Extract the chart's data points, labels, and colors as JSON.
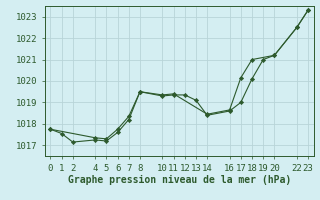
{
  "title": "Graphe pression niveau de la mer (hPa)",
  "background_color": "#d4eef2",
  "grid_color": "#b8d4d8",
  "line_color": "#2d5a2d",
  "marker_color": "#2d5a2d",
  "xlim": [
    -0.5,
    23.5
  ],
  "ylim": [
    1016.5,
    1023.5
  ],
  "yticks": [
    1017,
    1018,
    1019,
    1020,
    1021,
    1022,
    1023
  ],
  "xticks": [
    0,
    1,
    2,
    4,
    5,
    6,
    7,
    8,
    10,
    11,
    12,
    13,
    14,
    16,
    17,
    18,
    19,
    20,
    22,
    23
  ],
  "series1_x": [
    0,
    1,
    2,
    4,
    5,
    6,
    7,
    8,
    10,
    11,
    12,
    13,
    14,
    16,
    17,
    18,
    19,
    20,
    22,
    23
  ],
  "series1_y": [
    1017.75,
    1017.55,
    1017.15,
    1017.25,
    1017.2,
    1017.6,
    1018.2,
    1019.5,
    1019.3,
    1019.35,
    1019.35,
    1019.1,
    1018.4,
    1018.6,
    1019.0,
    1020.1,
    1021.0,
    1021.2,
    1022.5,
    1023.3
  ],
  "series2_x": [
    0,
    4,
    5,
    6,
    7,
    8,
    10,
    11,
    14,
    16,
    17,
    18,
    20,
    22,
    23
  ],
  "series2_y": [
    1017.75,
    1017.35,
    1017.3,
    1017.75,
    1018.35,
    1019.5,
    1019.35,
    1019.4,
    1018.45,
    1018.65,
    1020.15,
    1021.0,
    1021.2,
    1022.5,
    1023.3
  ],
  "xlabel_fontsize": 6.5,
  "ylabel_fontsize": 6.5,
  "title_fontsize": 7
}
